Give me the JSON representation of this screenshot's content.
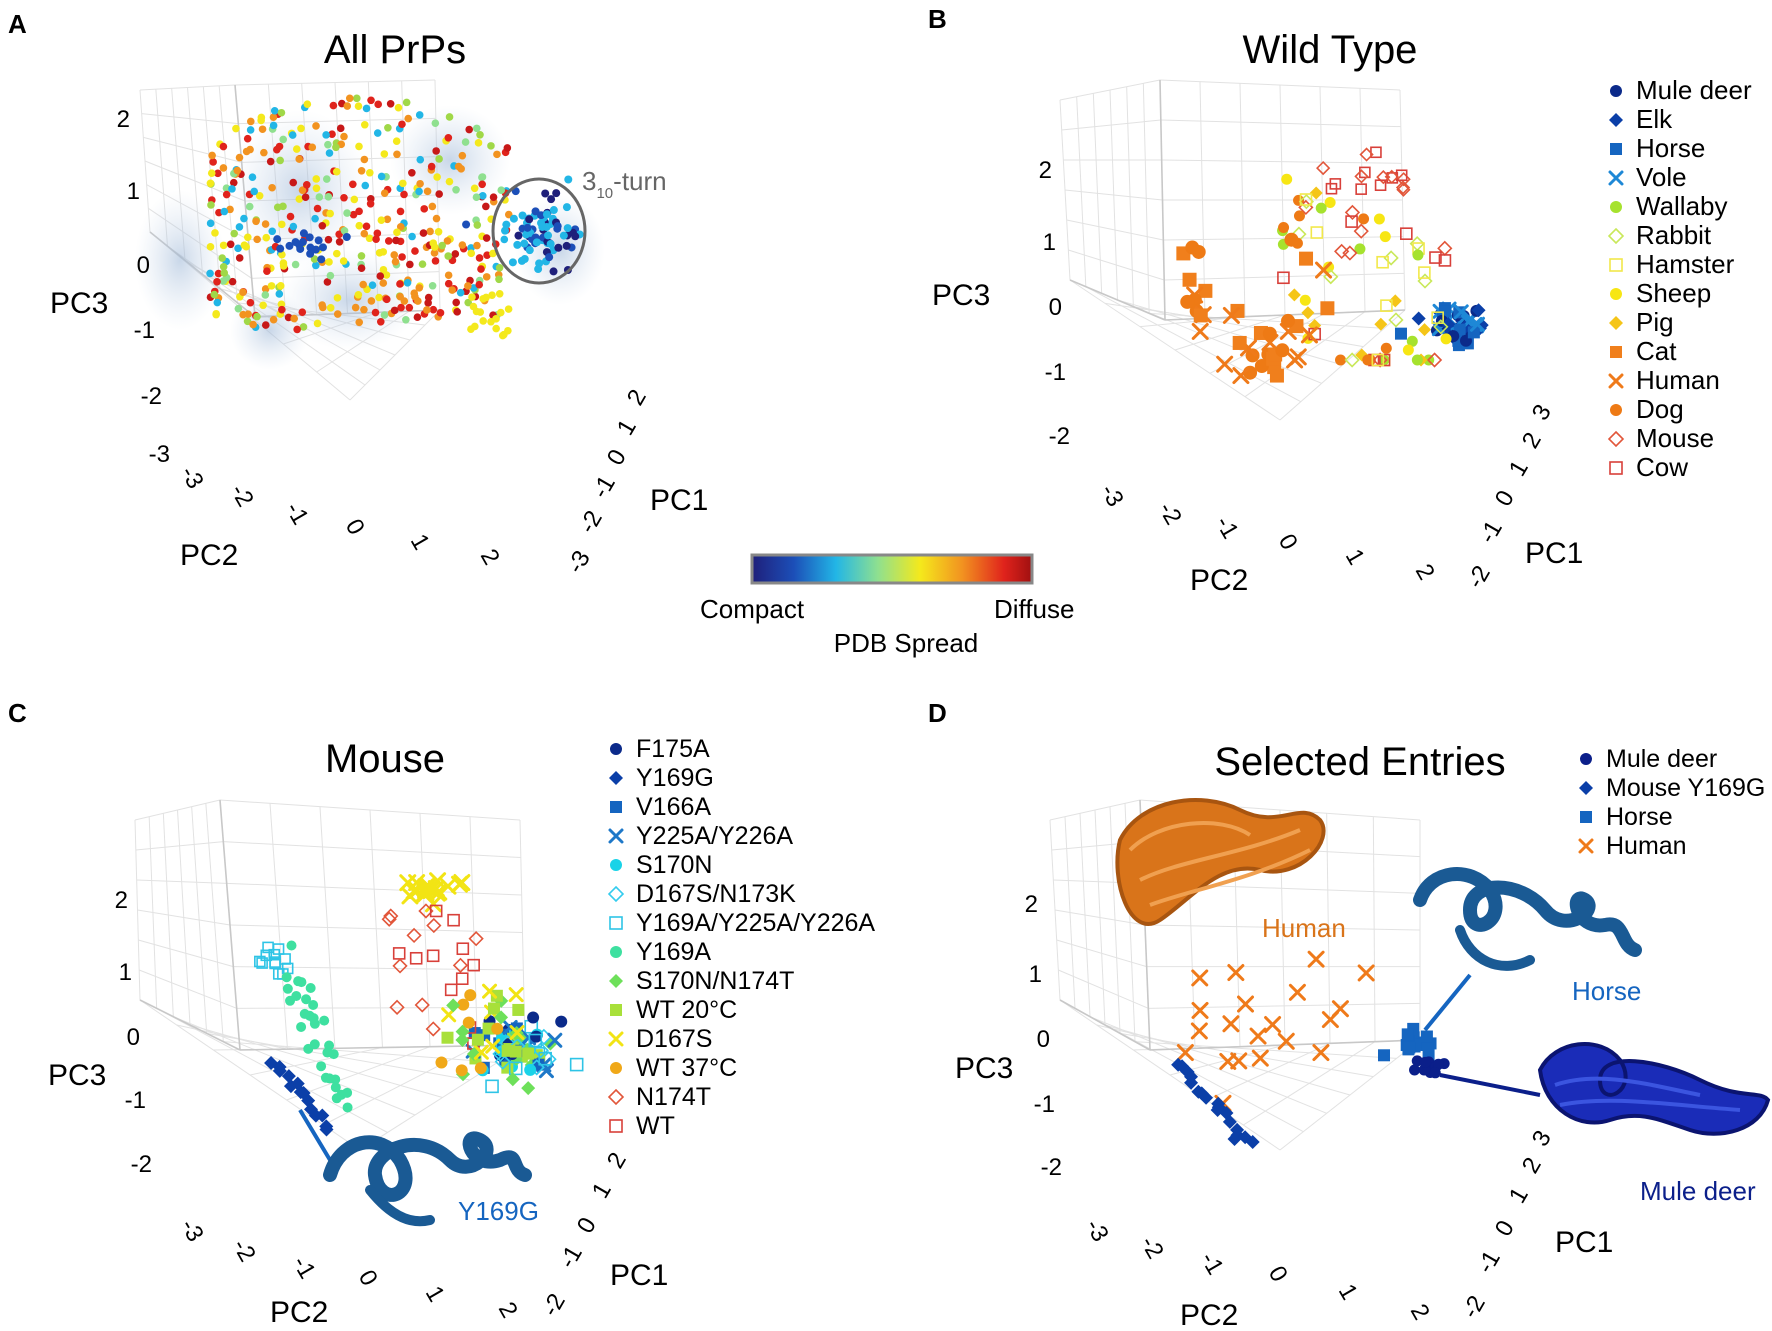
{
  "figure": {
    "colorbar": {
      "low_label": "Compact",
      "high_label": "Diffuse",
      "title": "PDB Spread",
      "colors": [
        "#1f1f7a",
        "#1c4fb8",
        "#22b6e6",
        "#8fe08f",
        "#f4e91c",
        "#f29320",
        "#e0231c",
        "#a01010"
      ]
    }
  },
  "chart_data": [
    {
      "panel_label": "A",
      "type": "scatter",
      "title": "All PrPs",
      "xlabel": "PC2",
      "zlabel": "PC3",
      "depthlabel": "PC1",
      "x_ticks": [
        "-3",
        "-2",
        "-1",
        "0",
        "1",
        "2"
      ],
      "z_ticks": [
        "2",
        "1",
        "0",
        "-1",
        "-2",
        "-3"
      ],
      "depth_ticks": [
        "2",
        "1",
        "0",
        "-1",
        "-2",
        "-3"
      ],
      "annotation": {
        "text": "3",
        "sub": "10",
        "suffix": "-turn"
      },
      "color_by": "PDB Spread"
    },
    {
      "panel_label": "B",
      "type": "scatter",
      "title": "Wild Type",
      "xlabel": "PC2",
      "zlabel": "PC3",
      "depthlabel": "PC1",
      "x_ticks": [
        "-3",
        "-2",
        "-1",
        "0",
        "1",
        "2"
      ],
      "z_ticks": [
        "2",
        "1",
        "0",
        "-1",
        "-2"
      ],
      "depth_ticks": [
        "3",
        "2",
        "1",
        "0",
        "-1",
        "-2"
      ],
      "legend": [
        {
          "label": "Mule deer",
          "marker": "circle",
          "color": "#0b2a8a"
        },
        {
          "label": "Elk",
          "marker": "diamond",
          "color": "#0b3fa8"
        },
        {
          "label": "Horse",
          "marker": "square",
          "color": "#1565c0"
        },
        {
          "label": "Vole",
          "marker": "x",
          "color": "#1e88d6"
        },
        {
          "label": "Wallaby",
          "marker": "circle",
          "color": "#a6e22e"
        },
        {
          "label": "Rabbit",
          "marker": "diamond-open",
          "color": "#c9e85a"
        },
        {
          "label": "Hamster",
          "marker": "square-open",
          "color": "#f2e84a"
        },
        {
          "label": "Sheep",
          "marker": "circle",
          "color": "#f7e614"
        },
        {
          "label": "Pig",
          "marker": "diamond",
          "color": "#f5c518"
        },
        {
          "label": "Cat",
          "marker": "square",
          "color": "#f07f1c"
        },
        {
          "label": "Human",
          "marker": "x",
          "color": "#ef7a1a"
        },
        {
          "label": "Dog",
          "marker": "circle",
          "color": "#ee7a15"
        },
        {
          "label": "Mouse",
          "marker": "diamond-open",
          "color": "#e2563a"
        },
        {
          "label": "Cow",
          "marker": "square-open",
          "color": "#d8403a"
        }
      ]
    },
    {
      "panel_label": "C",
      "type": "scatter",
      "title": "Mouse",
      "xlabel": "PC2",
      "zlabel": "PC3",
      "depthlabel": "PC1",
      "x_ticks": [
        "-3",
        "-2",
        "-1",
        "0",
        "1",
        "2"
      ],
      "z_ticks": [
        "2",
        "1",
        "0",
        "-1",
        "-2"
      ],
      "depth_ticks": [
        "2",
        "1",
        "0",
        "-1",
        "-2"
      ],
      "structure_label": "Y169G",
      "legend": [
        {
          "label": "F175A",
          "marker": "circle",
          "color": "#0b2a8a"
        },
        {
          "label": "Y169G",
          "marker": "diamond",
          "color": "#0b3fa8"
        },
        {
          "label": "V166A",
          "marker": "square",
          "color": "#1565c0"
        },
        {
          "label": "Y225A/Y226A",
          "marker": "x",
          "color": "#1e78c8"
        },
        {
          "label": "S170N",
          "marker": "circle",
          "color": "#19d3e8"
        },
        {
          "label": "D167S/N173K",
          "marker": "diamond-open",
          "color": "#33ccee"
        },
        {
          "label": "Y169A/Y225A/Y226A",
          "marker": "square-open",
          "color": "#2ec4e6"
        },
        {
          "label": "Y169A",
          "marker": "circle",
          "color": "#3ee0a0"
        },
        {
          "label": "S170N/N174T",
          "marker": "diamond",
          "color": "#6ee05a"
        },
        {
          "label": "WT 20°C",
          "marker": "square",
          "color": "#a8e03a"
        },
        {
          "label": "D167S",
          "marker": "x",
          "color": "#f2e414"
        },
        {
          "label": "WT 37°C",
          "marker": "circle",
          "color": "#f0a818"
        },
        {
          "label": "N174T",
          "marker": "diamond-open",
          "color": "#e2563a"
        },
        {
          "label": "WT",
          "marker": "square-open",
          "color": "#d8403a"
        }
      ]
    },
    {
      "panel_label": "D",
      "type": "scatter",
      "title": "Selected Entries",
      "xlabel": "PC2",
      "zlabel": "PC3",
      "depthlabel": "PC1",
      "x_ticks": [
        "-3",
        "-2",
        "-1",
        "0",
        "1",
        "2"
      ],
      "z_ticks": [
        "2",
        "1",
        "0",
        "-1",
        "-2"
      ],
      "depth_ticks": [
        "3",
        "2",
        "1",
        "0",
        "-1",
        "-2"
      ],
      "structure_labels": {
        "human": "Human",
        "horse": "Horse",
        "mule_deer": "Mule deer"
      },
      "legend": [
        {
          "label": "Mule deer",
          "marker": "circle",
          "color": "#0b1f8a"
        },
        {
          "label": "Mouse Y169G",
          "marker": "diamond",
          "color": "#0b3fa8"
        },
        {
          "label": "Horse",
          "marker": "square",
          "color": "#1565c0"
        },
        {
          "label": "Human",
          "marker": "x",
          "color": "#ef7a1a"
        }
      ]
    }
  ]
}
